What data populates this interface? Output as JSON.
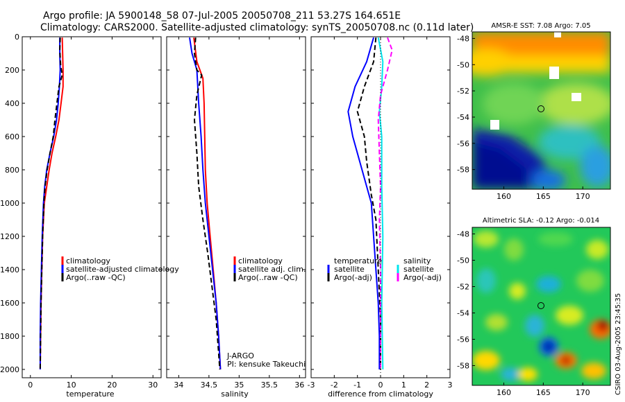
{
  "header": {
    "line1": "Argo profile: JA 5900148_58 07-Jul-2005 20050708_211 53.27S 164.651E",
    "line2": "Climatology: CARS2000. Satellite-adjusted climatology: synTS_20050708.nc (0.11d later)"
  },
  "colors": {
    "climatology": "#ff0000",
    "satellite": "#0000ff",
    "argo": "#000000",
    "sal_satellite": "#00e5ee",
    "sal_argo": "#ff00ff"
  },
  "chart_data": [
    {
      "type": "line",
      "id": "temperature",
      "xlabel": "temperature",
      "xlim": [
        -2,
        32
      ],
      "ylim": [
        2050,
        0
      ],
      "xticks": [
        0,
        10,
        20,
        30
      ],
      "yticks": [
        0,
        200,
        400,
        600,
        800,
        1000,
        1200,
        1400,
        1600,
        1800,
        2000
      ],
      "legend": [
        "climatology",
        "satellite-adjusted climatology",
        "Argo(..raw -QC)"
      ],
      "legend_position": "bottom-right",
      "series": [
        {
          "name": "climatology",
          "color": "#ff0000",
          "style": "solid",
          "points": [
            [
              7.8,
              5
            ],
            [
              7.9,
              100
            ],
            [
              8.0,
              200
            ],
            [
              8.0,
              300
            ],
            [
              7.5,
              400
            ],
            [
              7.0,
              500
            ],
            [
              6.2,
              600
            ],
            [
              5.3,
              700
            ],
            [
              4.6,
              800
            ],
            [
              4.0,
              900
            ],
            [
              3.4,
              1000
            ],
            [
              3.0,
              1200
            ],
            [
              2.8,
              1400
            ],
            [
              2.6,
              1600
            ],
            [
              2.5,
              1800
            ],
            [
              2.4,
              2000
            ]
          ]
        },
        {
          "name": "satellite-adjusted climatology",
          "color": "#0000ff",
          "style": "solid",
          "points": [
            [
              7.2,
              5
            ],
            [
              7.2,
              100
            ],
            [
              7.3,
              200
            ],
            [
              7.1,
              300
            ],
            [
              6.8,
              400
            ],
            [
              6.4,
              500
            ],
            [
              5.7,
              600
            ],
            [
              4.8,
              700
            ],
            [
              4.0,
              800
            ],
            [
              3.5,
              900
            ],
            [
              3.2,
              1000
            ],
            [
              2.9,
              1200
            ],
            [
              2.7,
              1400
            ],
            [
              2.5,
              1600
            ],
            [
              2.4,
              1800
            ],
            [
              2.4,
              2000
            ]
          ]
        },
        {
          "name": "Argo(..raw -QC)",
          "color": "#000000",
          "style": "dash",
          "points": [
            [
              7.3,
              5
            ],
            [
              7.2,
              80
            ],
            [
              7.4,
              170
            ],
            [
              7.8,
              230
            ],
            [
              7.0,
              300
            ],
            [
              6.5,
              400
            ],
            [
              6.0,
              500
            ],
            [
              5.6,
              600
            ],
            [
              4.8,
              700
            ],
            [
              4.1,
              800
            ],
            [
              3.6,
              900
            ],
            [
              3.3,
              1000
            ],
            [
              3.0,
              1200
            ],
            [
              2.8,
              1400
            ],
            [
              2.6,
              1600
            ],
            [
              2.5,
              1800
            ],
            [
              2.4,
              2000
            ]
          ]
        }
      ]
    },
    {
      "type": "line",
      "id": "salinity",
      "xlabel": "salinity",
      "xlim": [
        33.8,
        36.1
      ],
      "ylim": [
        2050,
        0
      ],
      "xticks": [
        34,
        34.5,
        35,
        35.5,
        36
      ],
      "legend": [
        "climatology",
        "satellite adj. clim.",
        "Argo(..raw -QC)"
      ],
      "legend_position": "bottom-right",
      "annotation": [
        "J-ARGO",
        "PI: kensuke Takeuchi"
      ],
      "series": [
        {
          "name": "climatology",
          "color": "#ff0000",
          "style": "solid",
          "points": [
            [
              34.25,
              5
            ],
            [
              34.3,
              150
            ],
            [
              34.4,
              250
            ],
            [
              34.42,
              400
            ],
            [
              34.43,
              600
            ],
            [
              34.44,
              800
            ],
            [
              34.47,
              1000
            ],
            [
              34.52,
              1200
            ],
            [
              34.57,
              1400
            ],
            [
              34.62,
              1600
            ],
            [
              34.66,
              1800
            ],
            [
              34.69,
              2000
            ]
          ]
        },
        {
          "name": "satellite adj. clim.",
          "color": "#0000ff",
          "style": "solid",
          "points": [
            [
              34.18,
              5
            ],
            [
              34.22,
              100
            ],
            [
              34.3,
              200
            ],
            [
              34.33,
              400
            ],
            [
              34.37,
              600
            ],
            [
              34.4,
              800
            ],
            [
              34.44,
              1000
            ],
            [
              34.5,
              1200
            ],
            [
              34.56,
              1400
            ],
            [
              34.62,
              1600
            ],
            [
              34.66,
              1800
            ],
            [
              34.69,
              2000
            ]
          ]
        },
        {
          "name": "Argo(..raw -QC)",
          "color": "#000000",
          "style": "dash",
          "points": [
            [
              34.28,
              5
            ],
            [
              34.26,
              100
            ],
            [
              34.3,
              200
            ],
            [
              34.38,
              230
            ],
            [
              34.3,
              350
            ],
            [
              34.26,
              500
            ],
            [
              34.3,
              700
            ],
            [
              34.33,
              900
            ],
            [
              34.4,
              1100
            ],
            [
              34.48,
              1300
            ],
            [
              34.55,
              1500
            ],
            [
              34.62,
              1700
            ],
            [
              34.66,
              1900
            ],
            [
              34.68,
              2000
            ]
          ]
        }
      ]
    },
    {
      "type": "line",
      "id": "difference",
      "xlabel": "difference from climatology",
      "xlim": [
        -3,
        3
      ],
      "ylim": [
        2050,
        0
      ],
      "xticks": [
        -3,
        -2,
        -1,
        0,
        1,
        2,
        3
      ],
      "legend_left": [
        "temperature",
        "satellite",
        "Argo(-adj)"
      ],
      "legend_right": [
        "salinity",
        "satellite",
        "Argo(-adj)"
      ],
      "legend_position": "bottom",
      "series": [
        {
          "name": "temperature satellite",
          "color": "#0000ff",
          "style": "solid",
          "points": [
            [
              -0.3,
              5
            ],
            [
              -0.6,
              150
            ],
            [
              -1.1,
              300
            ],
            [
              -1.4,
              450
            ],
            [
              -1.2,
              600
            ],
            [
              -0.9,
              750
            ],
            [
              -0.6,
              900
            ],
            [
              -0.4,
              1000
            ],
            [
              -0.3,
              1200
            ],
            [
              -0.2,
              1400
            ],
            [
              -0.1,
              1600
            ],
            [
              -0.05,
              1800
            ],
            [
              -0.05,
              2000
            ]
          ]
        },
        {
          "name": "temperature Argo(-adj)",
          "color": "#000000",
          "style": "dash",
          "points": [
            [
              -0.2,
              5
            ],
            [
              -0.3,
              150
            ],
            [
              -0.7,
              300
            ],
            [
              -1.0,
              450
            ],
            [
              -0.7,
              600
            ],
            [
              -0.6,
              750
            ],
            [
              -0.4,
              950
            ],
            [
              -0.2,
              1100
            ],
            [
              -0.1,
              1400
            ],
            [
              0.0,
              1700
            ],
            [
              0.0,
              2000
            ]
          ]
        },
        {
          "name": "salinity satellite",
          "color": "#00e5ee",
          "style": "solid",
          "points": [
            [
              -0.1,
              5
            ],
            [
              0.1,
              150
            ],
            [
              0.05,
              300
            ],
            [
              -0.05,
              450
            ],
            [
              0.05,
              600
            ],
            [
              0.05,
              900
            ],
            [
              0.1,
              1200
            ],
            [
              0.05,
              1600
            ],
            [
              0.1,
              2000
            ]
          ]
        },
        {
          "name": "salinity Argo(-adj)",
          "color": "#ff00ff",
          "style": "dash",
          "points": [
            [
              0.3,
              5
            ],
            [
              0.5,
              80
            ],
            [
              0.3,
              200
            ],
            [
              0.0,
              350
            ],
            [
              -0.1,
              500
            ],
            [
              -0.05,
              700
            ],
            [
              0.0,
              900
            ],
            [
              -0.05,
              1100
            ],
            [
              0.0,
              1400
            ],
            [
              0.0,
              2000
            ]
          ]
        }
      ]
    },
    {
      "type": "heatmap",
      "id": "sst-map",
      "title": "AMSR-E SST: 7.08 Argo: 7.05",
      "xticks": [
        160,
        165,
        170
      ],
      "yticks": [
        -48,
        -50,
        -52,
        -54,
        -56,
        -58
      ]
    },
    {
      "type": "heatmap",
      "id": "sla-map",
      "title": "Altimetric SLA: -0.12 Argo: -0.014",
      "xticks": [
        160,
        165,
        170
      ],
      "yticks": [
        -48,
        -50,
        -52,
        -54,
        -56,
        -58
      ]
    }
  ],
  "footer": {
    "timestamp": "CSIRO 03-Aug-2005 23:45:35"
  }
}
